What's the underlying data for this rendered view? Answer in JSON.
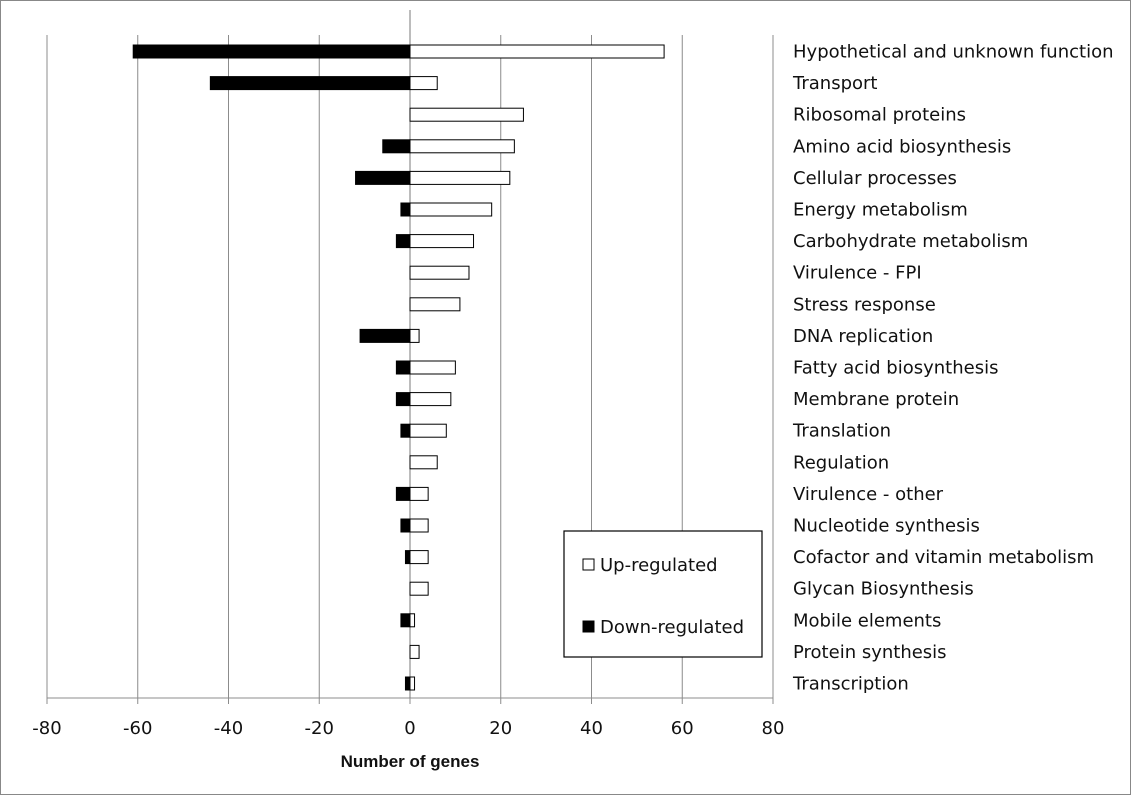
{
  "chart_data": {
    "type": "bar",
    "orientation": "horizontal",
    "title": "",
    "xlabel": "Number of genes",
    "ylabel": "",
    "xlim": [
      -80,
      80
    ],
    "xticks": [
      -80,
      -60,
      -40,
      -20,
      0,
      20,
      40,
      60,
      80
    ],
    "grid": "vertical major gridlines",
    "legend_position": "bottom-right inside plot",
    "categories": [
      "Hypothetical and unknown function",
      "Transport",
      "Ribosomal proteins",
      "Amino acid biosynthesis",
      "Cellular processes",
      "Energy metabolism",
      "Carbohydrate metabolism",
      "Virulence - FPI",
      "Stress response",
      "DNA replication",
      "Fatty acid biosynthesis",
      "Membrane protein",
      "Translation",
      "Regulation",
      "Virulence - other",
      "Nucleotide synthesis",
      "Cofactor and vitamin metabolism",
      "Glycan Biosynthesis",
      "Mobile elements",
      "Protein synthesis",
      "Transcription"
    ],
    "series": [
      {
        "name": "Up-regulated",
        "color": "#ffffff",
        "values": [
          56,
          6,
          25,
          23,
          22,
          18,
          14,
          13,
          11,
          2,
          10,
          9,
          8,
          6,
          4,
          4,
          4,
          4,
          1,
          2,
          1
        ]
      },
      {
        "name": "Down-regulated",
        "color": "#000000",
        "values": [
          -61,
          -44,
          0,
          -6,
          -12,
          -2,
          -3,
          0,
          0,
          -11,
          -3,
          -3,
          -2,
          0,
          -3,
          -2,
          -1,
          0,
          -2,
          0,
          -1
        ]
      }
    ]
  }
}
